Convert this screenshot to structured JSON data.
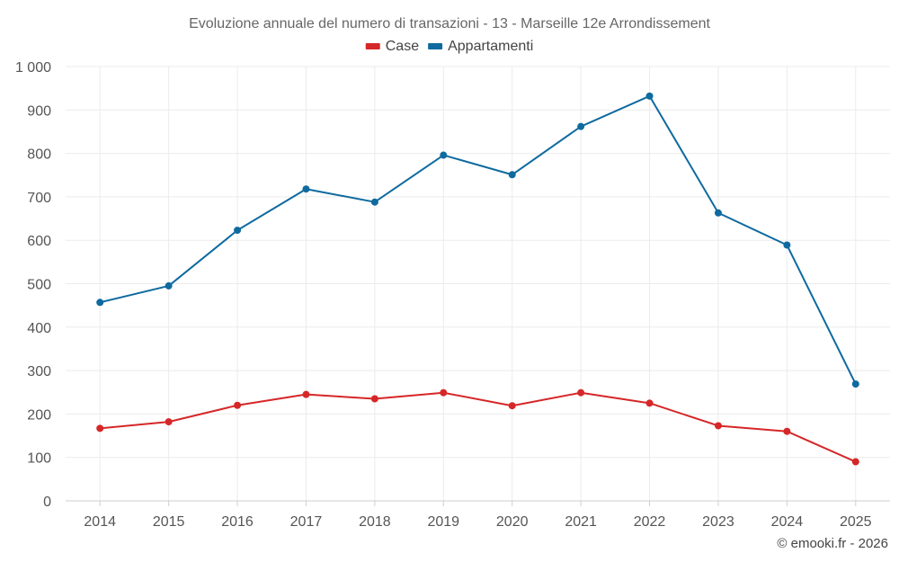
{
  "chart_data": {
    "type": "line",
    "title": "Evoluzione annuale del numero di transazioni - 13 - Marseille 12e Arrondissement",
    "categories": [
      "2014",
      "2015",
      "2016",
      "2017",
      "2018",
      "2019",
      "2020",
      "2021",
      "2022",
      "2023",
      "2024",
      "2025"
    ],
    "series": [
      {
        "name": "Case",
        "color": "#d62728",
        "values": [
          167,
          182,
          220,
          245,
          235,
          249,
          219,
          249,
          225,
          173,
          160,
          90
        ]
      },
      {
        "name": "Appartamenti",
        "color": "#0e6a9f",
        "values": [
          457,
          495,
          623,
          718,
          688,
          796,
          751,
          862,
          932,
          663,
          589,
          269
        ]
      }
    ],
    "ylim": [
      0,
      1000
    ],
    "yticks": [
      0,
      100,
      200,
      300,
      400,
      500,
      600,
      700,
      800,
      900,
      1000
    ],
    "ytick_labels": [
      "0",
      "100",
      "200",
      "300",
      "400",
      "500",
      "600",
      "700",
      "800",
      "900",
      "1 000"
    ],
    "xlabel": "",
    "ylabel": "",
    "grid": true,
    "legend_position": "top-center"
  },
  "credit": "© emooki.fr - 2026"
}
